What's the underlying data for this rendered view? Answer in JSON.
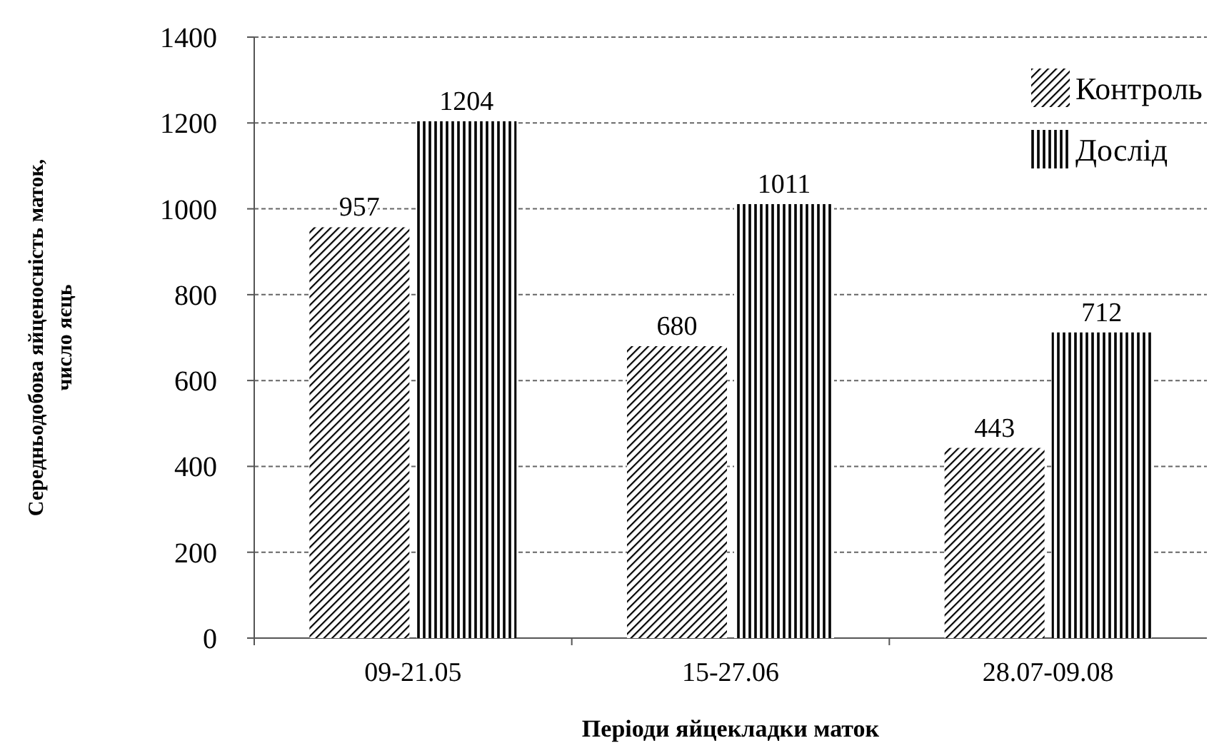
{
  "chart_data": {
    "type": "bar",
    "xlabel": "Періоди яйцекладки маток",
    "ylabel": "Середньодобова яйценосність маток,\nчисло яєць",
    "categories": [
      "09-21.05",
      "15-27.06",
      "28.07-09.08"
    ],
    "series": [
      {
        "name": "Контроль",
        "color": "#000000",
        "values": [
          957,
          680,
          443
        ]
      },
      {
        "name": "Дослід",
        "color": "#000000",
        "values": [
          1204,
          1011,
          712
        ]
      }
    ],
    "ylim": [
      0,
      1400
    ],
    "yticks": [
      0,
      200,
      400,
      600,
      800,
      1000,
      1200,
      1400
    ],
    "grid": "y",
    "legend": "top right",
    "data_labels": true
  }
}
